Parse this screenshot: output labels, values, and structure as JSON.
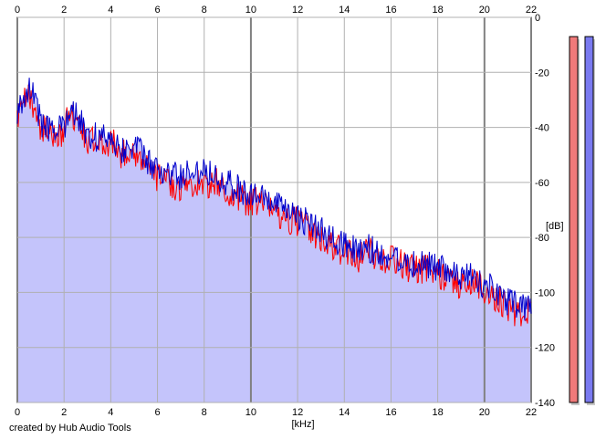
{
  "footer": {
    "credit": "created by Hub Audio Tools"
  },
  "chart_data": {
    "type": "line",
    "title": "",
    "xlabel": "[kHz]",
    "ylabel": "[dB]",
    "xlim": [
      0,
      22
    ],
    "ylim": [
      -140,
      0
    ],
    "x_ticks": [
      "0",
      "2",
      "4",
      "6",
      "8",
      "10",
      "12",
      "14",
      "16",
      "18",
      "20",
      "22"
    ],
    "y_ticks": [
      "0",
      "-20",
      "-40",
      "-60",
      "-80",
      "-100",
      "-120",
      "-140"
    ],
    "grid": true,
    "x_ticks_position": "top-and-bottom",
    "y_ticks_position": "right",
    "fill_color": "#c4c4fb",
    "series": [
      {
        "color": "#ff0000",
        "x": [
          0,
          0.25,
          0.5,
          0.75,
          1,
          1.5,
          2,
          2.25,
          2.5,
          3,
          3.5,
          4,
          4.5,
          5,
          5.5,
          6,
          6.5,
          7,
          7.5,
          8,
          8.5,
          9,
          9.5,
          10,
          10.5,
          11,
          11.5,
          12,
          12.5,
          13,
          13.5,
          14,
          14.5,
          15,
          15.5,
          16,
          16.5,
          17,
          17.5,
          18,
          18.5,
          19,
          19.5,
          20,
          20.5,
          21,
          21.5,
          22
        ],
        "values": [
          -38,
          -32,
          -28,
          -33,
          -40,
          -43,
          -42,
          -33,
          -38,
          -44,
          -47,
          -45,
          -50,
          -48,
          -54,
          -58,
          -60,
          -62,
          -60,
          -61,
          -60,
          -64,
          -66,
          -67,
          -68,
          -70,
          -73,
          -74,
          -77,
          -80,
          -84,
          -85,
          -88,
          -85,
          -87,
          -88,
          -90,
          -92,
          -91,
          -93,
          -95,
          -97,
          -96,
          -99,
          -102,
          -105,
          -108,
          -106
        ]
      },
      {
        "color": "#0000cc",
        "x": [
          0,
          0.25,
          0.5,
          0.75,
          1,
          1.5,
          2,
          2.25,
          2.5,
          3,
          3.5,
          4,
          4.5,
          5,
          5.5,
          6,
          6.5,
          7,
          7.5,
          8,
          8.5,
          9,
          9.5,
          10,
          10.5,
          11,
          11.5,
          12,
          12.5,
          13,
          13.5,
          14,
          14.5,
          15,
          15.5,
          16,
          16.5,
          17,
          17.5,
          18,
          18.5,
          19,
          19.5,
          20,
          20.5,
          21,
          21.5,
          22
        ],
        "values": [
          -35,
          -30,
          -24,
          -30,
          -38,
          -42,
          -40,
          -31,
          -36,
          -42,
          -44,
          -43,
          -48,
          -46,
          -52,
          -56,
          -57,
          -58,
          -56,
          -55,
          -57,
          -60,
          -63,
          -64,
          -66,
          -68,
          -71,
          -72,
          -75,
          -78,
          -81,
          -82,
          -85,
          -84,
          -86,
          -87,
          -88,
          -90,
          -89,
          -91,
          -93,
          -95,
          -94,
          -97,
          -100,
          -103,
          -106,
          -105
        ]
      }
    ],
    "level_meters": [
      {
        "color": "#f07a7a",
        "value_db": -7
      },
      {
        "color": "#7a7af0",
        "value_db": -7
      }
    ]
  }
}
